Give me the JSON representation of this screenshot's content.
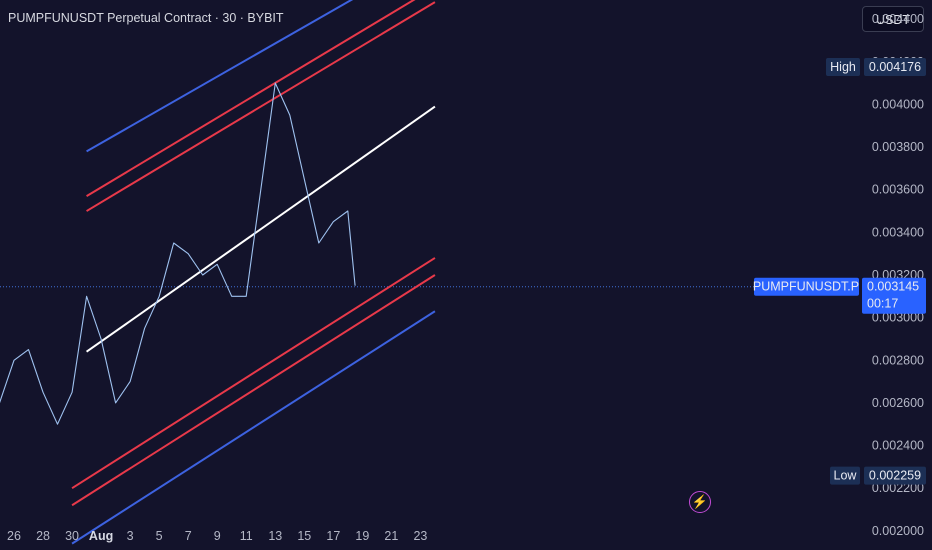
{
  "header": {
    "title": "PUMPFUNUSDT Perpetual Contract · 30 · BYBIT",
    "currency_button": "USDT"
  },
  "alert_icon": "lightning-bolt-icon",
  "colors": {
    "background": "#13132b",
    "price_line": "#9fc2f0",
    "channel_blue": "#3d62e0",
    "channel_red": "#e8394a",
    "midline": "#ffffff",
    "last_price_tag": "#2962ff",
    "high_low_tag": "#1c2f55"
  },
  "chart_data": {
    "type": "line",
    "x_tick_labels": [
      "26",
      "28",
      "30",
      "Aug",
      "3",
      "5",
      "7",
      "9",
      "11",
      "13",
      "15",
      "17",
      "19",
      "21",
      "23"
    ],
    "y_tick_labels": [
      "0.004400",
      "0.004200",
      "0.004000",
      "0.003800",
      "0.003600",
      "0.003400",
      "0.003200",
      "0.003000",
      "0.002800",
      "0.002600",
      "0.002400",
      "0.002200",
      "0.002000"
    ],
    "y_ticks": [
      0.0044,
      0.0042,
      0.004,
      0.0038,
      0.0036,
      0.0034,
      0.0032,
      0.003,
      0.0028,
      0.0026,
      0.0024,
      0.0022,
      0.002
    ],
    "ylim": [
      0.00191,
      0.00449
    ],
    "series": [
      {
        "x": [
          "Jul 24",
          "Jul 25",
          "Jul 26",
          "Jul 27",
          "Jul 28",
          "Jul 29",
          "Jul 30",
          "Jul 31",
          "Aug 1",
          "Aug 2",
          "Aug 3",
          "Aug 4",
          "Aug 5",
          "Aug 6",
          "Aug 7",
          "Aug 8",
          "Aug 9",
          "Aug 10",
          "Aug 11",
          "Aug 12",
          "Aug 13",
          "Aug 14",
          "Aug 15",
          "Aug 16",
          "Aug 17",
          "Aug 18",
          "Aug 18.5"
        ],
        "values": [
          0.0027,
          0.0026,
          0.0028,
          0.00285,
          0.00265,
          0.0025,
          0.00265,
          0.0031,
          0.0029,
          0.0026,
          0.0027,
          0.00295,
          0.0031,
          0.00335,
          0.0033,
          0.0032,
          0.00325,
          0.0031,
          0.0031,
          0.0036,
          0.0041,
          0.00395,
          0.00365,
          0.00335,
          0.00345,
          0.0035,
          0.00315
        ]
      }
    ],
    "trend_lines": [
      {
        "name": "",
        "color": "#3d62e0",
        "points": [
          [
            "Jul 31",
            0.00378
          ],
          [
            "Aug 19",
            0.00452
          ]
        ]
      },
      {
        "name": "",
        "color": "#e8394a",
        "points": [
          [
            "Jul 31",
            0.00357
          ],
          [
            "Aug 24",
            0.00455
          ]
        ]
      },
      {
        "name": "",
        "color": "#e8394a",
        "points": [
          [
            "Jul 31",
            0.0035
          ],
          [
            "Aug 24",
            0.00448
          ]
        ]
      },
      {
        "name": "",
        "color": "#ffffff",
        "points": [
          [
            "Jul 31",
            0.00284
          ],
          [
            "Aug 24",
            0.00399
          ]
        ]
      },
      {
        "name": "",
        "color": "#e8394a",
        "points": [
          [
            "Jul 30",
            0.0022
          ],
          [
            "Aug 24",
            0.00328
          ]
        ]
      },
      {
        "name": "",
        "color": "#e8394a",
        "points": [
          [
            "Jul 30",
            0.00212
          ],
          [
            "Aug 24",
            0.0032
          ]
        ]
      },
      {
        "name": "",
        "color": "#3d62e0",
        "points": [
          [
            "Jul 30",
            0.00194
          ],
          [
            "Aug 24",
            0.00303
          ]
        ]
      }
    ],
    "last_price": {
      "symbol": "PUMPFUNUSDT.P",
      "value": "0.003145",
      "countdown": "00:17",
      "y": 0.003145
    },
    "high": {
      "label": "High",
      "value": "0.004176",
      "y": 0.004176
    },
    "low": {
      "label": "Low",
      "value": "0.002259",
      "y": 0.002259
    },
    "grid": false,
    "legend": "none"
  }
}
